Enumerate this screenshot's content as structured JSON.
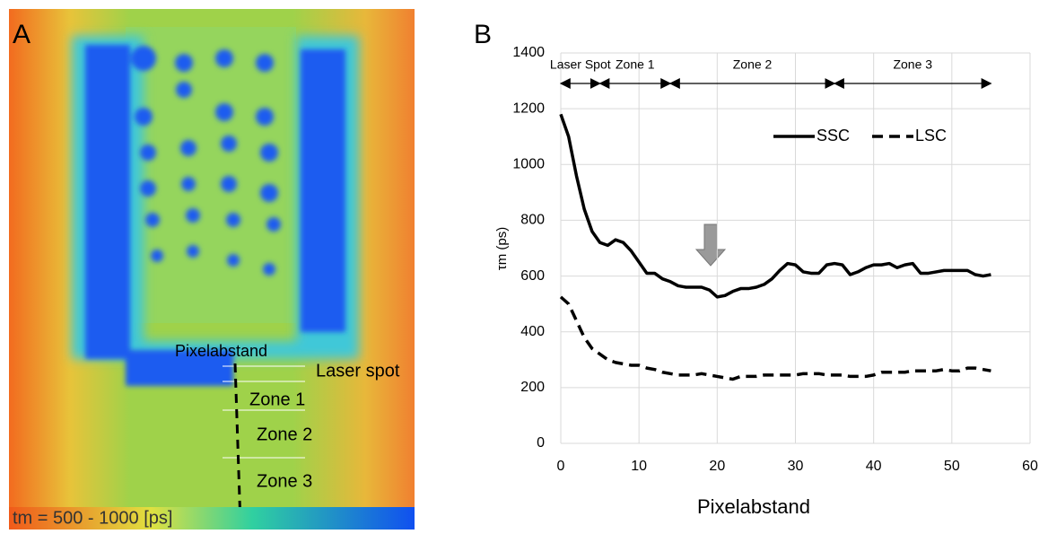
{
  "panel_a": {
    "label": "A",
    "distance_label": "Pixelabstand",
    "zones": [
      "Laser spot",
      "Zone 1",
      "Zone 2",
      "Zone 3"
    ],
    "colorbar_label": "tm = 500 - 1000 [ps]"
  },
  "chart_data": {
    "type": "line",
    "panel_label": "B",
    "x_label": "Pixelabstand",
    "y_label": "τm (ps)",
    "x": [
      0,
      1,
      2,
      3,
      4,
      5,
      6,
      7,
      8,
      9,
      10,
      11,
      12,
      13,
      14,
      15,
      16,
      17,
      18,
      19,
      20,
      21,
      22,
      23,
      24,
      25,
      26,
      27,
      28,
      29,
      30,
      31,
      32,
      33,
      34,
      35,
      36,
      37,
      38,
      39,
      40,
      41,
      42,
      43,
      44,
      45,
      46,
      47,
      48,
      49,
      50,
      51,
      52,
      53,
      54,
      55
    ],
    "series": [
      {
        "name": "SSC",
        "color": "#000000",
        "dash": false,
        "values": [
          1180,
          1100,
          960,
          840,
          760,
          720,
          710,
          730,
          720,
          690,
          650,
          610,
          610,
          590,
          580,
          565,
          560,
          560,
          560,
          550,
          525,
          530,
          545,
          555,
          555,
          560,
          570,
          590,
          620,
          645,
          640,
          615,
          610,
          610,
          640,
          645,
          640,
          605,
          615,
          630,
          640,
          640,
          645,
          630,
          640,
          645,
          610,
          610,
          615,
          620,
          620,
          620,
          620,
          605,
          600,
          605
        ]
      },
      {
        "name": "LSC",
        "color": "#000000",
        "dash": true,
        "values": [
          525,
          500,
          440,
          380,
          340,
          320,
          300,
          290,
          285,
          280,
          280,
          270,
          265,
          255,
          250,
          245,
          245,
          245,
          250,
          245,
          240,
          235,
          230,
          240,
          240,
          240,
          245,
          245,
          245,
          245,
          245,
          250,
          250,
          250,
          245,
          245,
          245,
          240,
          240,
          240,
          245,
          255,
          255,
          255,
          255,
          260,
          260,
          260,
          260,
          265,
          260,
          260,
          270,
          270,
          265,
          260
        ]
      }
    ],
    "zones": [
      {
        "label": "Laser Spot",
        "from": 0,
        "to": 5
      },
      {
        "label": "Zone 1",
        "from": 5,
        "to": 14
      },
      {
        "label": "Zone 2",
        "from": 14,
        "to": 35
      },
      {
        "label": "Zone 3",
        "from": 35,
        "to": 55
      }
    ],
    "xlim": [
      0,
      60
    ],
    "xticks": [
      0,
      10,
      20,
      30,
      40,
      50,
      60
    ],
    "ylim": [
      0,
      1400
    ],
    "yticks": [
      0,
      200,
      400,
      600,
      800,
      1000,
      1200,
      1400
    ],
    "grid": true
  }
}
